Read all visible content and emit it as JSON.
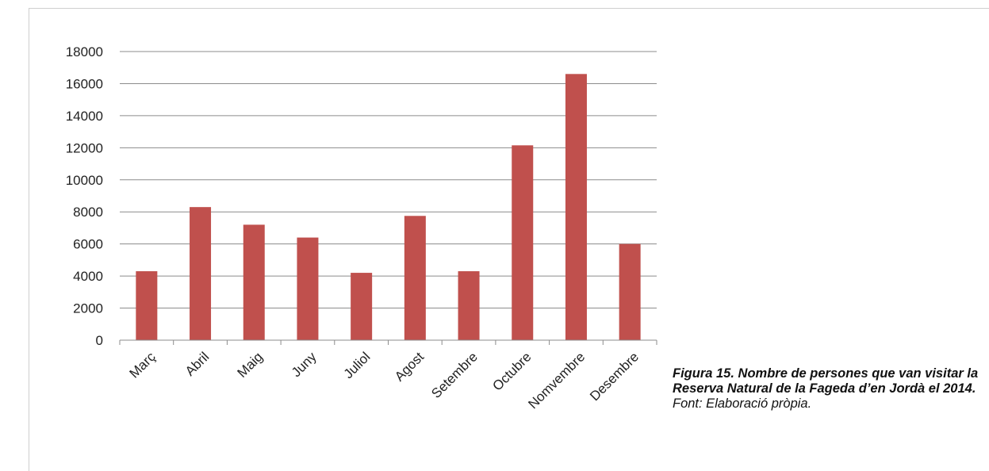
{
  "chart_data": {
    "type": "bar",
    "categories": [
      "Març",
      "Abril",
      "Maig",
      "Juny",
      "Juliol",
      "Agost",
      "Setembre",
      "Octubre",
      "Nomvembre",
      "Desembre"
    ],
    "values": [
      4300,
      8300,
      7200,
      6400,
      4200,
      7750,
      4300,
      12150,
      16600,
      6000
    ],
    "ylim": [
      0,
      18000
    ],
    "yticks": [
      0,
      2000,
      4000,
      6000,
      8000,
      10000,
      12000,
      14000,
      16000,
      18000
    ],
    "grid": true,
    "bar_color": "#c0504d",
    "grid_color": "#8c8c8c"
  },
  "caption": {
    "bold_text": "Figura 15. Nombre de persones que van visitar la Reserva Natural de la Fageda d’en Jordà el 2014.",
    "plain_text": " Font: Elaboració pròpia."
  }
}
